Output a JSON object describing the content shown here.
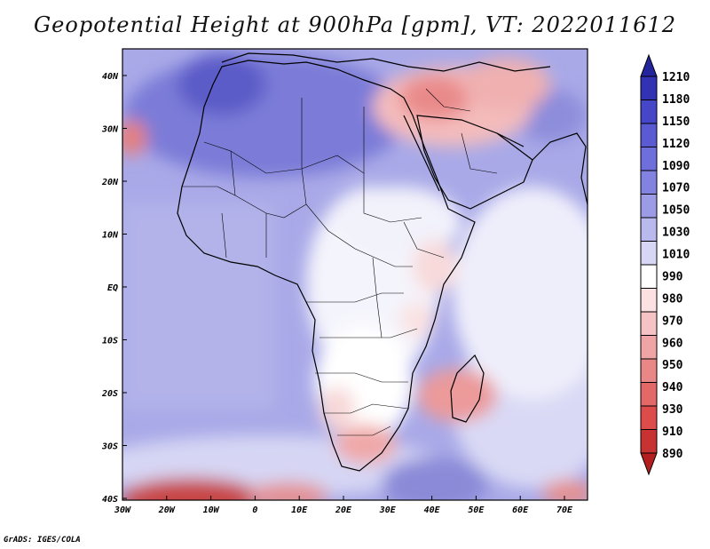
{
  "title": "Geopotential Height at 900hPa [gpm], VT: 2022011612",
  "footer": "GrADS: IGES/COLA",
  "map": {
    "lat_labels": [
      "40N",
      "30N",
      "20N",
      "10N",
      "EQ",
      "10S",
      "20S",
      "30S",
      "40S"
    ],
    "lon_labels": [
      "30W",
      "20W",
      "10W",
      "0",
      "10E",
      "20E",
      "30E",
      "40E",
      "50E",
      "60E",
      "70E"
    ]
  },
  "colorbar": {
    "levels": [
      "1210",
      "1180",
      "1150",
      "1120",
      "1090",
      "1070",
      "1050",
      "1030",
      "1010",
      "990",
      "980",
      "970",
      "960",
      "950",
      "940",
      "930",
      "910",
      "890"
    ],
    "colors": [
      "#24249c",
      "#3232b4",
      "#4646c8",
      "#5a5ad2",
      "#6e6edc",
      "#8282e1",
      "#9b9be6",
      "#b9b9ee",
      "#d7d7f5",
      "#ffffff",
      "#fbe1e1",
      "#f5c3c3",
      "#efa5a5",
      "#e98787",
      "#e36969",
      "#dd4b4b",
      "#c83232",
      "#b41e1e"
    ]
  },
  "colors": {
    "background": "#b0b0e8",
    "land_outline": "#000000"
  }
}
